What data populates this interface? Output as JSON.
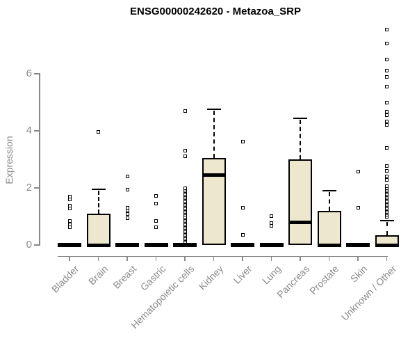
{
  "chart_data": {
    "type": "boxplot",
    "title": "ENSG00000242620 - Metazoa_SRP",
    "xlabel": "",
    "ylabel": "Expression",
    "yticks": [
      0,
      2,
      4,
      6
    ],
    "ylim": [
      0,
      7.6
    ],
    "grid": false,
    "legend": null,
    "colors": {
      "box_fill": "#ede8cd",
      "box_border": "#000000",
      "median": "#000000",
      "whisker": "#000000",
      "outlier": "#000000",
      "axis": "#888888",
      "tick_label": "#8a8a8a",
      "title": "#000000"
    },
    "categories": [
      "Bladder",
      "Brain",
      "Breast",
      "Gastric",
      "Hematopoietic cells",
      "Kidney",
      "Liver",
      "Lung",
      "Pancreas",
      "Prostate",
      "Skin",
      "Unknown / Other"
    ],
    "boxes": [
      {
        "category": "Bladder",
        "q1": 0,
        "median": 0,
        "q3": 0,
        "whisker_low": 0,
        "whisker_high": 0,
        "outliers": [
          0.61,
          0.72,
          0.84,
          1.27,
          1.38,
          1.59,
          1.7
        ]
      },
      {
        "category": "Brain",
        "q1": 0,
        "median": 0,
        "q3": 1.1,
        "whisker_low": 0,
        "whisker_high": 1.95,
        "outliers": [
          3.97
        ]
      },
      {
        "category": "Breast",
        "q1": 0,
        "median": 0,
        "q3": 0,
        "whisker_low": 0,
        "whisker_high": 0,
        "outliers": [
          0.95,
          1.08,
          1.2,
          1.3,
          1.93,
          2.4
        ]
      },
      {
        "category": "Gastric",
        "q1": 0,
        "median": 0,
        "q3": 0,
        "whisker_low": 0,
        "whisker_high": 0,
        "outliers": [
          0.61,
          0.83,
          1.44,
          1.71
        ]
      },
      {
        "category": "Hematopoietic cells",
        "q1": 0,
        "median": 0,
        "q3": 0,
        "whisker_low": 0,
        "whisker_high": 0,
        "outliers": [
          0.1,
          0.15,
          0.2,
          0.25,
          0.3,
          0.35,
          0.4,
          0.45,
          0.5,
          0.55,
          0.6,
          0.65,
          0.7,
          0.75,
          0.8,
          0.85,
          0.9,
          0.95,
          1.0,
          1.05,
          1.1,
          1.15,
          1.2,
          1.25,
          1.3,
          1.35,
          1.4,
          1.45,
          1.5,
          1.55,
          1.6,
          1.65,
          1.7,
          1.75,
          1.8,
          1.85,
          1.9,
          1.95,
          2.0,
          3.1,
          3.3,
          4.7
        ]
      },
      {
        "category": "Kidney",
        "q1": 0,
        "median": 2.45,
        "q3": 3.05,
        "whisker_low": 0,
        "whisker_high": 4.75,
        "outliers": []
      },
      {
        "category": "Liver",
        "q1": 0,
        "median": 0,
        "q3": 0,
        "whisker_low": 0,
        "whisker_high": 0,
        "outliers": [
          0.35,
          1.3,
          3.63
        ]
      },
      {
        "category": "Lung",
        "q1": 0,
        "median": 0,
        "q3": 0,
        "whisker_low": 0,
        "whisker_high": 0,
        "outliers": [
          0.66,
          0.78,
          1.02
        ]
      },
      {
        "category": "Pancreas",
        "q1": 0,
        "median": 0.8,
        "q3": 3.0,
        "whisker_low": 0,
        "whisker_high": 4.45,
        "outliers": []
      },
      {
        "category": "Prostate",
        "q1": 0,
        "median": 0,
        "q3": 1.2,
        "whisker_low": 0,
        "whisker_high": 1.9,
        "outliers": []
      },
      {
        "category": "Skin",
        "q1": 0,
        "median": 0,
        "q3": 0,
        "whisker_low": 0,
        "whisker_high": 0,
        "outliers": [
          1.3,
          2.57
        ]
      },
      {
        "category": "Unknown / Other",
        "q1": 0,
        "median": 0,
        "q3": 0.35,
        "whisker_low": 0,
        "whisker_high": 0.85,
        "outliers": [
          1.0,
          1.05,
          1.1,
          1.15,
          1.2,
          1.25,
          1.3,
          1.35,
          1.4,
          1.45,
          1.5,
          1.55,
          1.6,
          1.65,
          1.7,
          1.75,
          1.8,
          1.85,
          1.9,
          1.95,
          2.0,
          2.05,
          2.27,
          2.41,
          2.6,
          2.78,
          3.4,
          4.2,
          4.32,
          4.56,
          4.68,
          4.98,
          5.56,
          5.9,
          6.1,
          6.49,
          7.07,
          7.55
        ]
      }
    ]
  }
}
